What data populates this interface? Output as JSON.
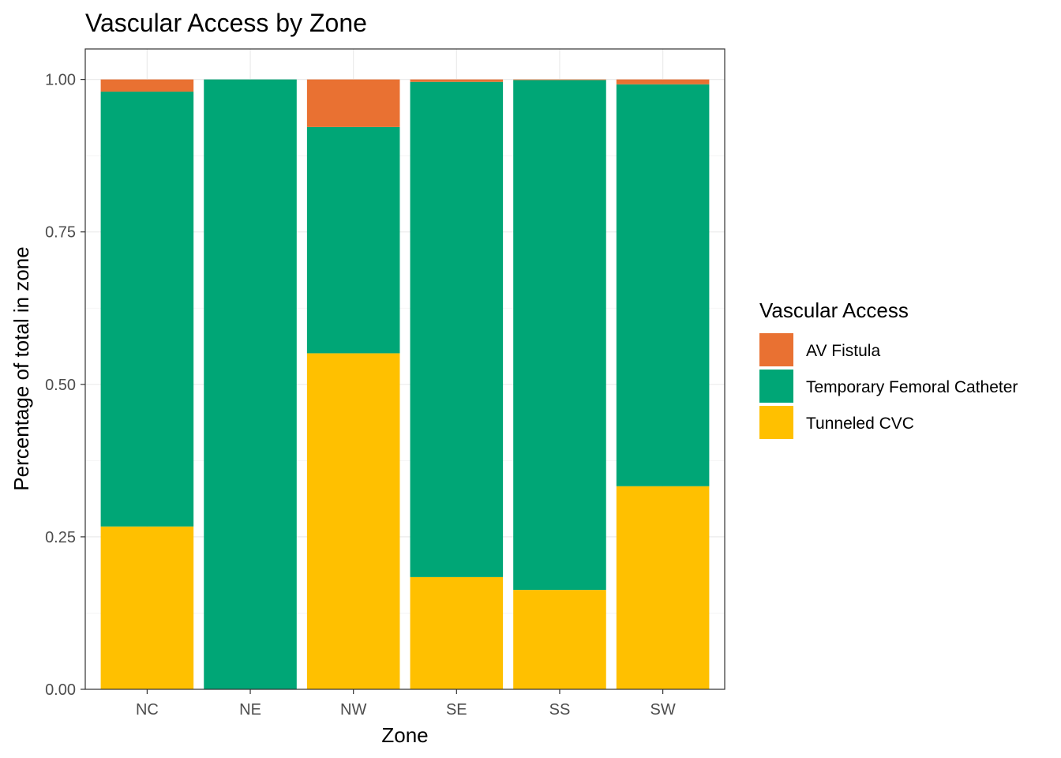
{
  "chart_data": {
    "type": "bar",
    "stacked": true,
    "title": "Vascular Access by Zone",
    "xlabel": "Zone",
    "ylabel": "Percentage of total in zone",
    "categories": [
      "NC",
      "NE",
      "NW",
      "SE",
      "SS",
      "SW"
    ],
    "ylim": [
      0,
      1.05
    ],
    "yticks": [
      0,
      0.25,
      0.5,
      0.75,
      1.0
    ],
    "ytick_labels": [
      "0.00",
      "0.25",
      "0.50",
      "0.75",
      "1.00"
    ],
    "grid": true,
    "legend_title": "Vascular Access",
    "legend_position": "right",
    "series": [
      {
        "name": "Tunneled CVC",
        "color": "#FFC000",
        "values": [
          0.267,
          0.0,
          0.551,
          0.184,
          0.163,
          0.333
        ]
      },
      {
        "name": "Temporary Femoral Catheter",
        "color": "#00A676",
        "values": [
          0.713,
          1.0,
          0.371,
          0.812,
          0.836,
          0.659
        ]
      },
      {
        "name": "AV Fistula",
        "color": "#E97132",
        "values": [
          0.02,
          0.0,
          0.078,
          0.004,
          0.001,
          0.008
        ]
      }
    ],
    "legend_order": [
      "AV Fistula",
      "Temporary Femoral Catheter",
      "Tunneled CVC"
    ]
  }
}
